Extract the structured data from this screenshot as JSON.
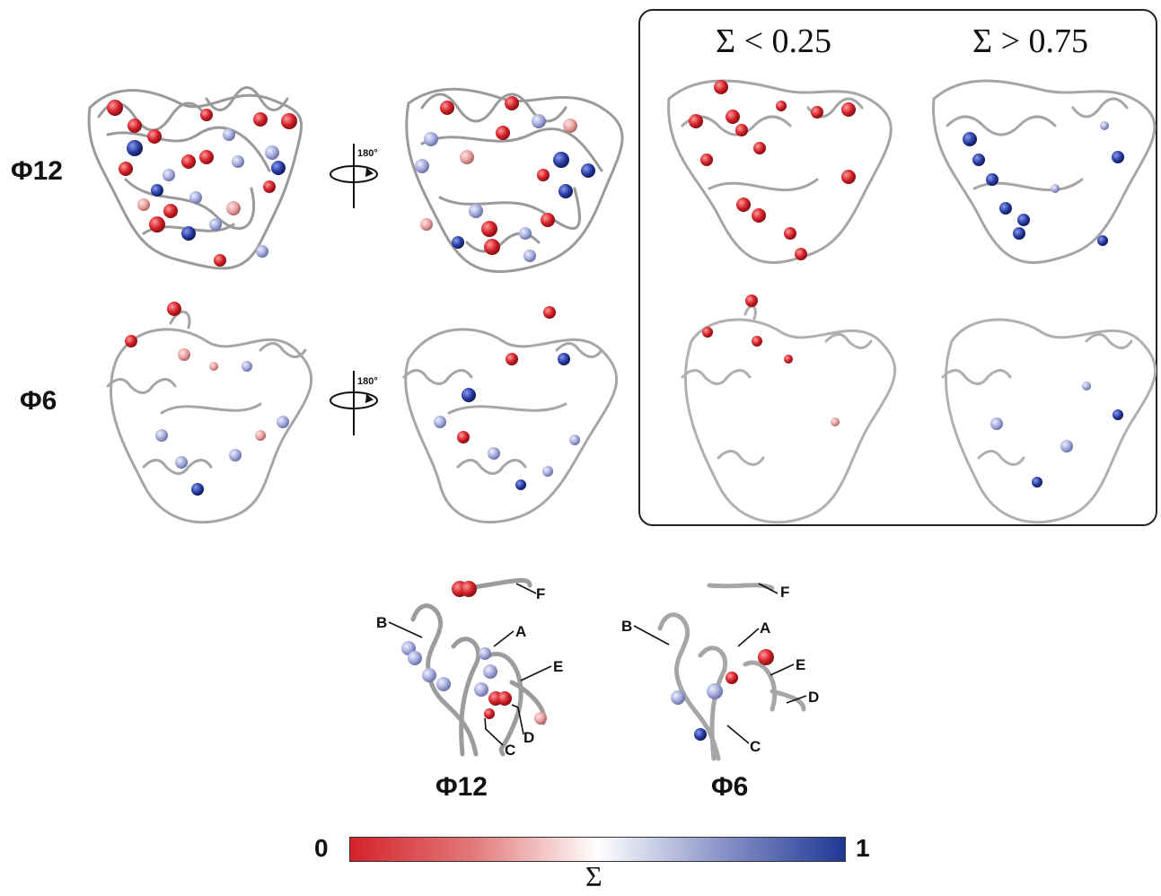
{
  "rows": {
    "phi12_label": "Φ12",
    "phi6_label": "Φ6"
  },
  "rotation": {
    "label": "180°"
  },
  "inset": {
    "col_low": "Σ < 0.25",
    "col_high": "Σ > 0.75"
  },
  "detail": {
    "phi12_label": "Φ12",
    "phi6_label": "Φ6",
    "callouts": [
      "A",
      "B",
      "C",
      "D",
      "E",
      "F"
    ]
  },
  "colorbar": {
    "min_label": "0",
    "max_label": "1",
    "axis_label": "Σ",
    "colors": {
      "low": "#d4222a",
      "mid": "#ffffff",
      "high": "#1f3894"
    }
  }
}
